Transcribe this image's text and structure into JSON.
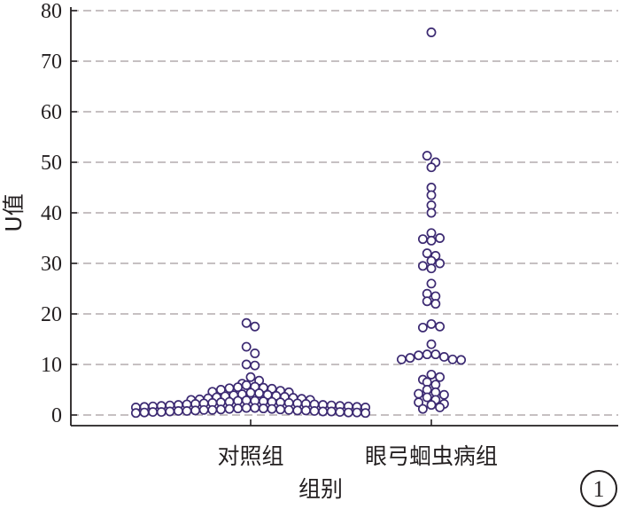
{
  "chart_data": {
    "type": "scatter",
    "title": "",
    "xlabel": "组别",
    "ylabel": "U值",
    "ylim": [
      0,
      80
    ],
    "yticks": [
      0,
      10,
      20,
      30,
      40,
      50,
      60,
      70,
      80
    ],
    "grid": true,
    "categories": [
      "对照组",
      "眼弓蛔虫病组"
    ],
    "series": [
      {
        "category": "对照组",
        "values": [
          18.2,
          17.5,
          13.5,
          12.2,
          10.0,
          9.8,
          7.5,
          6.8,
          6.2,
          5.9,
          5.6,
          5.5,
          5.4,
          5.3,
          5.2,
          5.0,
          4.8,
          4.6,
          4.5,
          4.4,
          4.3,
          4.1,
          4.0,
          3.9,
          3.8,
          3.7,
          3.6,
          3.5,
          3.4,
          3.3,
          3.2,
          3.1,
          3.0,
          3.0,
          2.9,
          2.8,
          2.8,
          2.7,
          2.6,
          2.6,
          2.5,
          2.5,
          2.4,
          2.4,
          2.3,
          2.3,
          2.2,
          2.2,
          2.1,
          2.1,
          2.0,
          2.0,
          1.9,
          1.9,
          1.8,
          1.8,
          1.7,
          1.7,
          1.6,
          1.6,
          1.5,
          1.5,
          1.4,
          1.4,
          1.3,
          1.3,
          1.2,
          1.2,
          1.1,
          1.1,
          1.0,
          1.0,
          1.0,
          0.9,
          0.9,
          0.9,
          0.8,
          0.8,
          0.8,
          0.7,
          0.7,
          0.7,
          0.6,
          0.6,
          0.6,
          0.5,
          0.5,
          0.5,
          0.4,
          0.4
        ]
      },
      {
        "category": "眼弓蛔虫病组",
        "values": [
          75.7,
          51.3,
          50.0,
          49.0,
          45.0,
          43.5,
          41.5,
          40.0,
          36.0,
          35.0,
          34.8,
          34.5,
          32.0,
          31.5,
          30.5,
          30.0,
          29.5,
          29.0,
          26.0,
          24.0,
          23.5,
          22.5,
          22.0,
          18.0,
          17.5,
          17.3,
          14.0,
          12.0,
          12.0,
          11.8,
          11.5,
          11.3,
          11.0,
          11.0,
          10.9,
          8.0,
          7.5,
          7.0,
          6.5,
          6.0,
          5.0,
          4.5,
          4.2,
          4.0,
          3.5,
          3.0,
          2.5,
          2.2,
          2.0,
          1.5,
          1.2
        ]
      }
    ]
  },
  "badge": {
    "label": "1"
  }
}
